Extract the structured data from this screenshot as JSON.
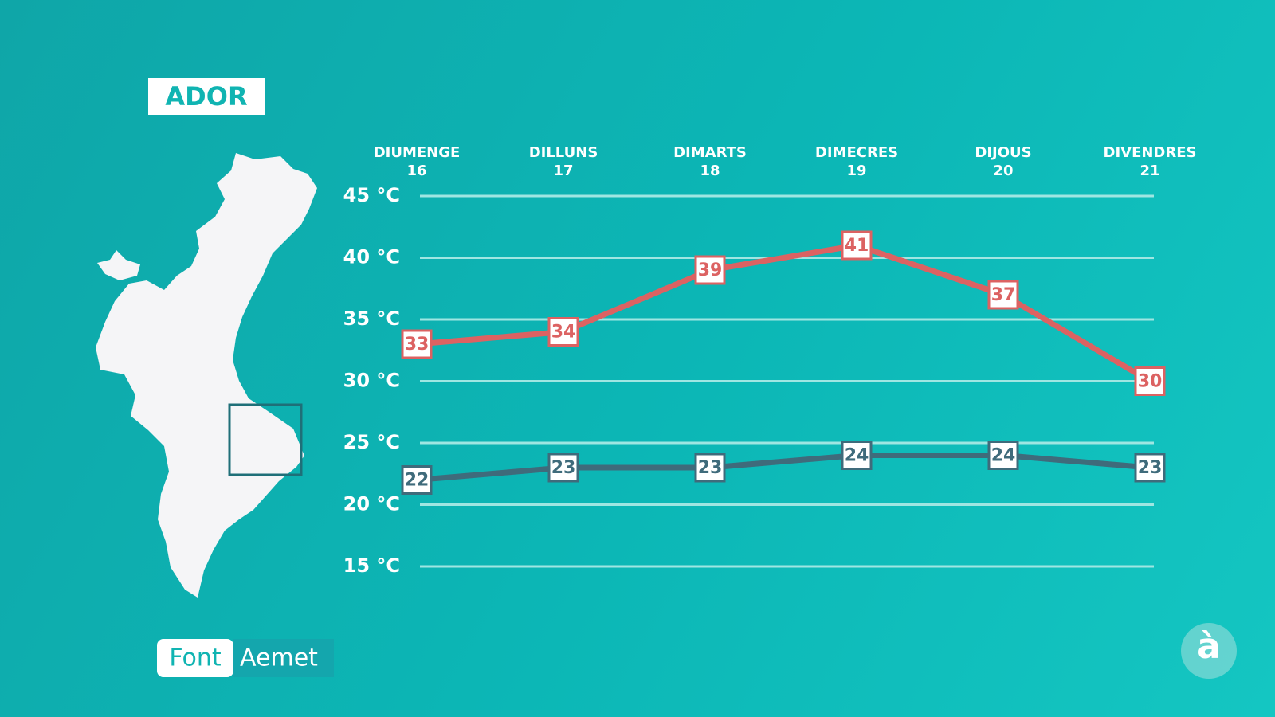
{
  "chart_data": {
    "type": "line",
    "title": "ADOR",
    "categories": [
      "DIUMENGE\n16",
      "DILLUNS\n17",
      "DIMARTS\n18",
      "DIMECRES\n19",
      "DIJOUS\n20",
      "DIVENDRES\n21"
    ],
    "series": [
      {
        "color": "#dc6262",
        "values": [
          33,
          34,
          39,
          41,
          37,
          30
        ]
      },
      {
        "color": "#3f6b7b",
        "values": [
          22,
          23,
          23,
          24,
          24,
          23
        ]
      }
    ],
    "ylim": [
      15,
      45
    ],
    "yticks": [
      {
        "value": 45,
        "label": "45 °C"
      },
      {
        "value": 40,
        "label": "40 °C"
      },
      {
        "value": 35,
        "label": "35 °C"
      },
      {
        "value": 30,
        "label": "30 °C"
      },
      {
        "value": 25,
        "label": "25 °C"
      },
      {
        "value": 20,
        "label": "20 °C"
      },
      {
        "value": 15,
        "label": "15 °C"
      }
    ],
    "grid": true,
    "source_label": "Font",
    "source": "Aemet",
    "logo": "à"
  }
}
